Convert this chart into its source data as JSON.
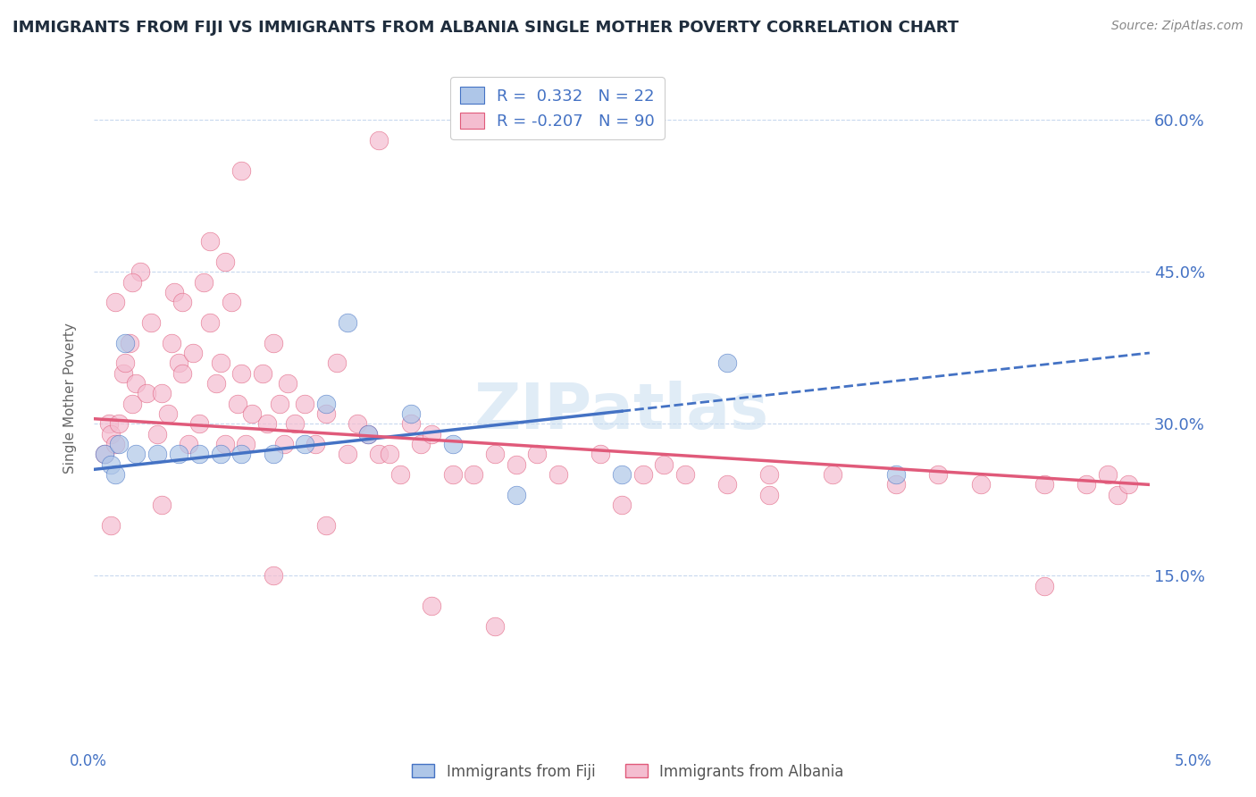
{
  "title": "IMMIGRANTS FROM FIJI VS IMMIGRANTS FROM ALBANIA SINGLE MOTHER POVERTY CORRELATION CHART",
  "source": "Source: ZipAtlas.com",
  "ylabel": "Single Mother Poverty",
  "fiji_R": 0.332,
  "fiji_N": 22,
  "albania_R": -0.207,
  "albania_N": 90,
  "fiji_color": "#aec6e8",
  "fiji_line_color": "#4472c4",
  "fiji_edge_color": "#4472c4",
  "albania_color": "#f4bdd0",
  "albania_line_color": "#e05a7a",
  "albania_edge_color": "#e05a7a",
  "background_color": "#ffffff",
  "grid_color": "#c8d8ee",
  "title_color": "#1f2d3d",
  "axis_label_color": "#4472c4",
  "watermark": "ZIPatlas",
  "xlim": [
    0.0,
    5.0
  ],
  "ylim": [
    0.0,
    65.0
  ],
  "yticks": [
    15.0,
    30.0,
    45.0,
    60.0
  ],
  "fiji_trend_x0": 0.0,
  "fiji_trend_y0": 25.5,
  "fiji_trend_x1": 5.0,
  "fiji_trend_y1": 37.0,
  "fiji_solid_end": 2.5,
  "albania_trend_x0": 0.0,
  "albania_trend_y0": 30.5,
  "albania_trend_x1": 5.0,
  "albania_trend_y1": 24.0,
  "fiji_x": [
    0.05,
    0.08,
    0.1,
    0.12,
    0.15,
    0.2,
    0.3,
    0.4,
    0.5,
    0.6,
    0.7,
    0.85,
    1.0,
    1.1,
    1.3,
    1.5,
    1.7,
    2.0,
    2.5,
    3.0,
    3.8,
    1.2
  ],
  "fiji_y": [
    27,
    26,
    25,
    28,
    38,
    27,
    27,
    27,
    27,
    27,
    27,
    27,
    28,
    32,
    29,
    31,
    28,
    23,
    25,
    36,
    25,
    40
  ],
  "albania_x": [
    0.05,
    0.07,
    0.08,
    0.1,
    0.12,
    0.14,
    0.15,
    0.17,
    0.18,
    0.2,
    0.22,
    0.25,
    0.27,
    0.3,
    0.32,
    0.35,
    0.37,
    0.38,
    0.4,
    0.42,
    0.45,
    0.47,
    0.5,
    0.52,
    0.55,
    0.58,
    0.6,
    0.62,
    0.65,
    0.68,
    0.7,
    0.72,
    0.75,
    0.8,
    0.82,
    0.85,
    0.88,
    0.9,
    0.92,
    0.95,
    1.0,
    1.05,
    1.1,
    1.15,
    1.2,
    1.25,
    1.3,
    1.35,
    1.4,
    1.45,
    1.5,
    1.55,
    1.6,
    1.7,
    1.8,
    1.9,
    2.0,
    2.1,
    2.2,
    2.4,
    2.6,
    2.7,
    2.8,
    3.0,
    3.2,
    3.5,
    3.8,
    4.0,
    4.2,
    4.5,
    4.7,
    4.8,
    4.85,
    4.9,
    0.32,
    0.18,
    0.55,
    0.1,
    0.62,
    0.08,
    0.42,
    0.7,
    0.85,
    1.1,
    1.35,
    1.6,
    1.9,
    2.5,
    3.2,
    4.5
  ],
  "albania_y": [
    27,
    30,
    29,
    28,
    30,
    35,
    36,
    38,
    32,
    34,
    45,
    33,
    40,
    29,
    33,
    31,
    38,
    43,
    36,
    42,
    28,
    37,
    30,
    44,
    40,
    34,
    36,
    28,
    42,
    32,
    35,
    28,
    31,
    35,
    30,
    38,
    32,
    28,
    34,
    30,
    32,
    28,
    31,
    36,
    27,
    30,
    29,
    27,
    27,
    25,
    30,
    28,
    29,
    25,
    25,
    27,
    26,
    27,
    25,
    27,
    25,
    26,
    25,
    24,
    25,
    25,
    24,
    25,
    24,
    24,
    24,
    25,
    23,
    24,
    22,
    44,
    48,
    42,
    46,
    20,
    35,
    55,
    15,
    20,
    58,
    12,
    10,
    22,
    23,
    14
  ]
}
